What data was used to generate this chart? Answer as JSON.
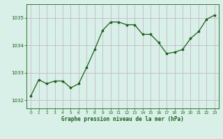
{
  "x": [
    0,
    1,
    2,
    3,
    4,
    5,
    6,
    7,
    8,
    9,
    10,
    11,
    12,
    13,
    14,
    15,
    16,
    17,
    18,
    19,
    20,
    21,
    22,
    23
  ],
  "y": [
    1032.15,
    1032.75,
    1032.6,
    1032.7,
    1032.7,
    1032.45,
    1032.6,
    1033.2,
    1033.85,
    1034.55,
    1034.85,
    1034.85,
    1034.75,
    1034.75,
    1034.4,
    1034.4,
    1034.1,
    1033.7,
    1033.75,
    1033.85,
    1034.25,
    1034.5,
    1034.95,
    1035.1
  ],
  "line_color": "#1a5e1a",
  "marker_color": "#1a5e1a",
  "bg_color": "#d8f0e8",
  "grid_color": "#c8b8c8",
  "ylabel_ticks": [
    1032,
    1033,
    1034,
    1035
  ],
  "xlabel": "Graphe pression niveau de la mer (hPa)",
  "xlabel_color": "#1a5e1a",
  "tick_color": "#1a5e1a",
  "xlim": [
    -0.5,
    23.5
  ],
  "ylim": [
    1031.7,
    1035.5
  ]
}
